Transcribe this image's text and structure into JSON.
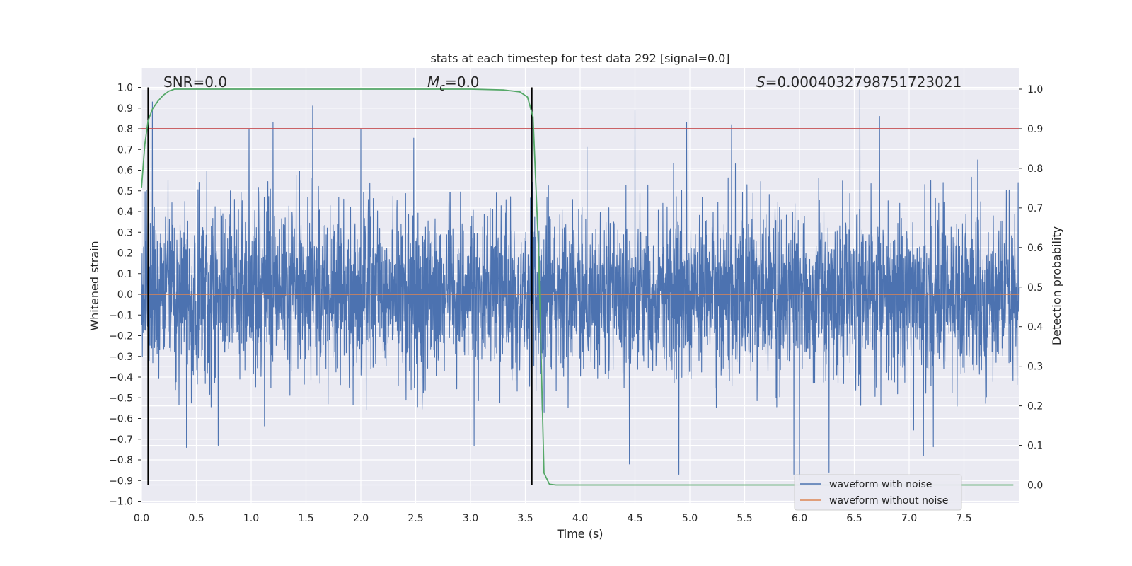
{
  "chart_data": {
    "type": "line",
    "title": "stats at each timestep for test data 292 [signal=0.0]",
    "xlabel": "Time (s)",
    "ylabel": "Whitened strain",
    "y2label": "Detection probability",
    "xlim": [
      0.0,
      8.0
    ],
    "ylim": [
      -1.03,
      1.1
    ],
    "y2lim": [
      -0.05,
      1.05
    ],
    "xticks": [
      0.0,
      0.5,
      1.0,
      1.5,
      2.0,
      2.5,
      3.0,
      3.5,
      4.0,
      4.5,
      5.0,
      5.5,
      6.0,
      6.5,
      7.0,
      7.5
    ],
    "xtick_labels": [
      "0.0",
      "0.5",
      "1.0",
      "1.5",
      "2.0",
      "2.5",
      "3.0",
      "3.5",
      "4.0",
      "4.5",
      "5.0",
      "5.5",
      "6.0",
      "6.5",
      "7.0",
      "7.5"
    ],
    "yticks": [
      1.0,
      0.9,
      0.8,
      0.7,
      0.6,
      0.5,
      0.4,
      0.3,
      0.2,
      0.1,
      0.0,
      -0.1,
      -0.2,
      -0.3,
      -0.4,
      -0.5,
      -0.6,
      -0.7,
      -0.8,
      -0.9,
      -1.0
    ],
    "ytick_labels": [
      "1.0",
      "0.9",
      "0.8",
      "0.7",
      "0.6",
      "0.5",
      "0.4",
      "0.3",
      "0.2",
      "0.1",
      "0.0",
      "−0.1",
      "−0.2",
      "−0.3",
      "−0.4",
      "−0.5",
      "−0.6",
      "−0.7",
      "−0.8",
      "−0.9",
      "−1.0"
    ],
    "y2ticks": [
      1.0,
      0.9,
      0.8,
      0.7,
      0.6,
      0.5,
      0.4,
      0.3,
      0.2,
      0.1,
      0.0
    ],
    "y2tick_labels": [
      "1.0",
      "0.9",
      "0.8",
      "0.7",
      "0.6",
      "0.5",
      "0.4",
      "0.3",
      "0.2",
      "0.1",
      "0.0"
    ],
    "grid": true,
    "legend_placement": "lower-right",
    "colors": {
      "background": "#eaeaf2",
      "grid": "#ffffff",
      "noise": "#4c72b0",
      "clean": "#dd8452",
      "probability": "#55a868",
      "threshold": "#c44e52",
      "marker": "#000000"
    },
    "annotations": {
      "snr": "SNR=0.0",
      "mc_symbol": "M",
      "mc_subscript": "c",
      "mc_value": "=0.0",
      "s_symbol": "S",
      "s_value": "=0.0004032798751723021"
    },
    "series": [
      {
        "name": "waveform with noise",
        "description_type": "noise",
        "sample_rate": 512,
        "duration": 8.0,
        "typical_amplitude": 0.2,
        "notable_peaks": [
          [
            0.1,
            0.93
          ],
          [
            0.98,
            0.8
          ],
          [
            1.2,
            0.83
          ],
          [
            1.56,
            0.91
          ],
          [
            2.0,
            0.8
          ],
          [
            4.5,
            0.89
          ],
          [
            4.97,
            0.83
          ],
          [
            5.38,
            0.82
          ],
          [
            6.55,
            0.99
          ],
          [
            6.73,
            0.86
          ],
          [
            4.45,
            -0.82
          ],
          [
            4.9,
            -0.87
          ],
          [
            5.95,
            -0.87
          ],
          [
            6.0,
            -0.9
          ],
          [
            6.27,
            -0.86
          ],
          [
            0.41,
            -0.74
          ],
          [
            0.7,
            -0.73
          ],
          [
            7.13,
            -0.78
          ]
        ]
      },
      {
        "name": "waveform without noise",
        "x": [
          0.0,
          8.0
        ],
        "y": [
          0.0,
          0.0
        ]
      },
      {
        "name": "detection probability",
        "axis": "right",
        "x": [
          0.0,
          0.03,
          0.06,
          0.1,
          0.15,
          0.2,
          0.25,
          0.3,
          0.4,
          0.5,
          1.0,
          2.0,
          3.0,
          3.3,
          3.45,
          3.52,
          3.57,
          3.62,
          3.67,
          3.72,
          3.78,
          4.0,
          5.0,
          6.0,
          7.0,
          7.95
        ],
        "y": [
          0.75,
          0.86,
          0.92,
          0.95,
          0.97,
          0.985,
          0.995,
          1.0,
          1.0,
          1.0,
          1.0,
          1.0,
          1.0,
          0.998,
          0.993,
          0.98,
          0.93,
          0.6,
          0.03,
          0.002,
          0.0,
          0.0,
          0.0,
          0.0,
          0.0,
          0.0
        ]
      }
    ],
    "threshold": {
      "axis": "right",
      "value": 0.9
    },
    "vertical_markers": {
      "x": [
        0.06,
        3.56
      ],
      "y_range": [
        -0.92,
        1.0
      ]
    },
    "legend": [
      "waveform with noise",
      "waveform without noise"
    ]
  }
}
